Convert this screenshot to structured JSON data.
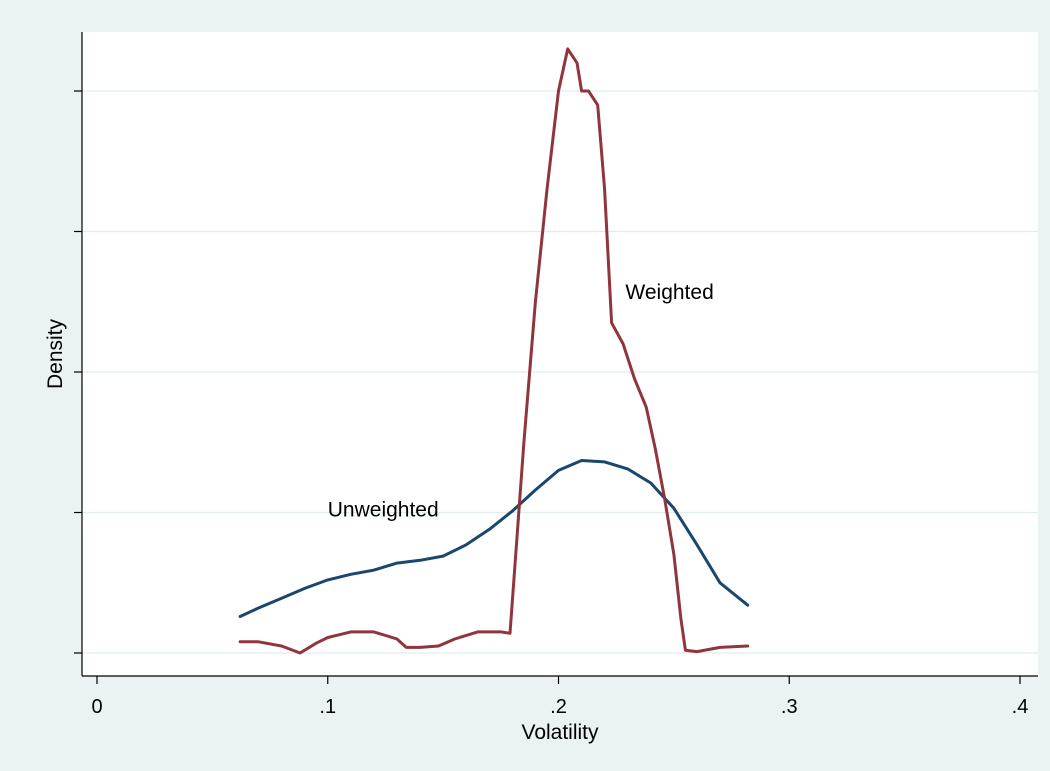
{
  "chart_data": {
    "type": "line",
    "xlabel": "Volatility",
    "ylabel": "Density",
    "xlim": [
      -0.0075,
      0.4075
    ],
    "ylim": [
      -0.08,
      4.33
    ],
    "x_ticks": [
      0,
      0.1,
      0.2,
      0.3,
      0.4
    ],
    "x_tick_labels": [
      "0",
      ".1",
      ".2",
      ".3",
      ".4"
    ],
    "y_ticks": [
      0,
      1,
      2,
      3,
      4
    ],
    "y_tick_labels": [
      "",
      "",
      "",
      "",
      ""
    ],
    "grid": "horizontal",
    "colors": {
      "plot_bg": "#ffffff",
      "outer_bg": "#eaf2f3",
      "grid": "#e1ecee",
      "axis": "#000000"
    },
    "series": [
      {
        "label": "Unweighted",
        "color": "#1a476f",
        "label_at": [
          0.1,
          0.97
        ],
        "points": [
          [
            0.062,
            0.26
          ],
          [
            0.07,
            0.32
          ],
          [
            0.08,
            0.39
          ],
          [
            0.09,
            0.46
          ],
          [
            0.1,
            0.52
          ],
          [
            0.11,
            0.56
          ],
          [
            0.12,
            0.59
          ],
          [
            0.13,
            0.64
          ],
          [
            0.14,
            0.66
          ],
          [
            0.15,
            0.69
          ],
          [
            0.16,
            0.77
          ],
          [
            0.17,
            0.88
          ],
          [
            0.18,
            1.01
          ],
          [
            0.19,
            1.16
          ],
          [
            0.2,
            1.3
          ],
          [
            0.21,
            1.37
          ],
          [
            0.22,
            1.36
          ],
          [
            0.23,
            1.31
          ],
          [
            0.24,
            1.21
          ],
          [
            0.25,
            1.03
          ],
          [
            0.26,
            0.77
          ],
          [
            0.27,
            0.5
          ],
          [
            0.282,
            0.34
          ]
        ]
      },
      {
        "label": "Weighted",
        "color": "#90353b",
        "label_at": [
          0.229,
          2.52
        ],
        "points": [
          [
            0.062,
            0.08
          ],
          [
            0.07,
            0.08
          ],
          [
            0.08,
            0.05
          ],
          [
            0.088,
            0.0
          ],
          [
            0.095,
            0.07
          ],
          [
            0.1,
            0.11
          ],
          [
            0.11,
            0.15
          ],
          [
            0.12,
            0.15
          ],
          [
            0.13,
            0.1
          ],
          [
            0.134,
            0.04
          ],
          [
            0.14,
            0.04
          ],
          [
            0.148,
            0.05
          ],
          [
            0.155,
            0.1
          ],
          [
            0.165,
            0.15
          ],
          [
            0.175,
            0.15
          ],
          [
            0.179,
            0.14
          ],
          [
            0.181,
            0.6
          ],
          [
            0.185,
            1.5
          ],
          [
            0.19,
            2.5
          ],
          [
            0.195,
            3.3
          ],
          [
            0.2,
            4.0
          ],
          [
            0.204,
            4.3
          ],
          [
            0.208,
            4.2
          ],
          [
            0.21,
            4.0
          ],
          [
            0.213,
            4.0
          ],
          [
            0.217,
            3.9
          ],
          [
            0.22,
            3.3
          ],
          [
            0.223,
            2.35
          ],
          [
            0.228,
            2.2
          ],
          [
            0.233,
            1.95
          ],
          [
            0.238,
            1.75
          ],
          [
            0.242,
            1.45
          ],
          [
            0.246,
            1.1
          ],
          [
            0.25,
            0.7
          ],
          [
            0.253,
            0.25
          ],
          [
            0.255,
            0.02
          ],
          [
            0.26,
            0.01
          ],
          [
            0.27,
            0.04
          ],
          [
            0.282,
            0.05
          ]
        ]
      }
    ]
  }
}
